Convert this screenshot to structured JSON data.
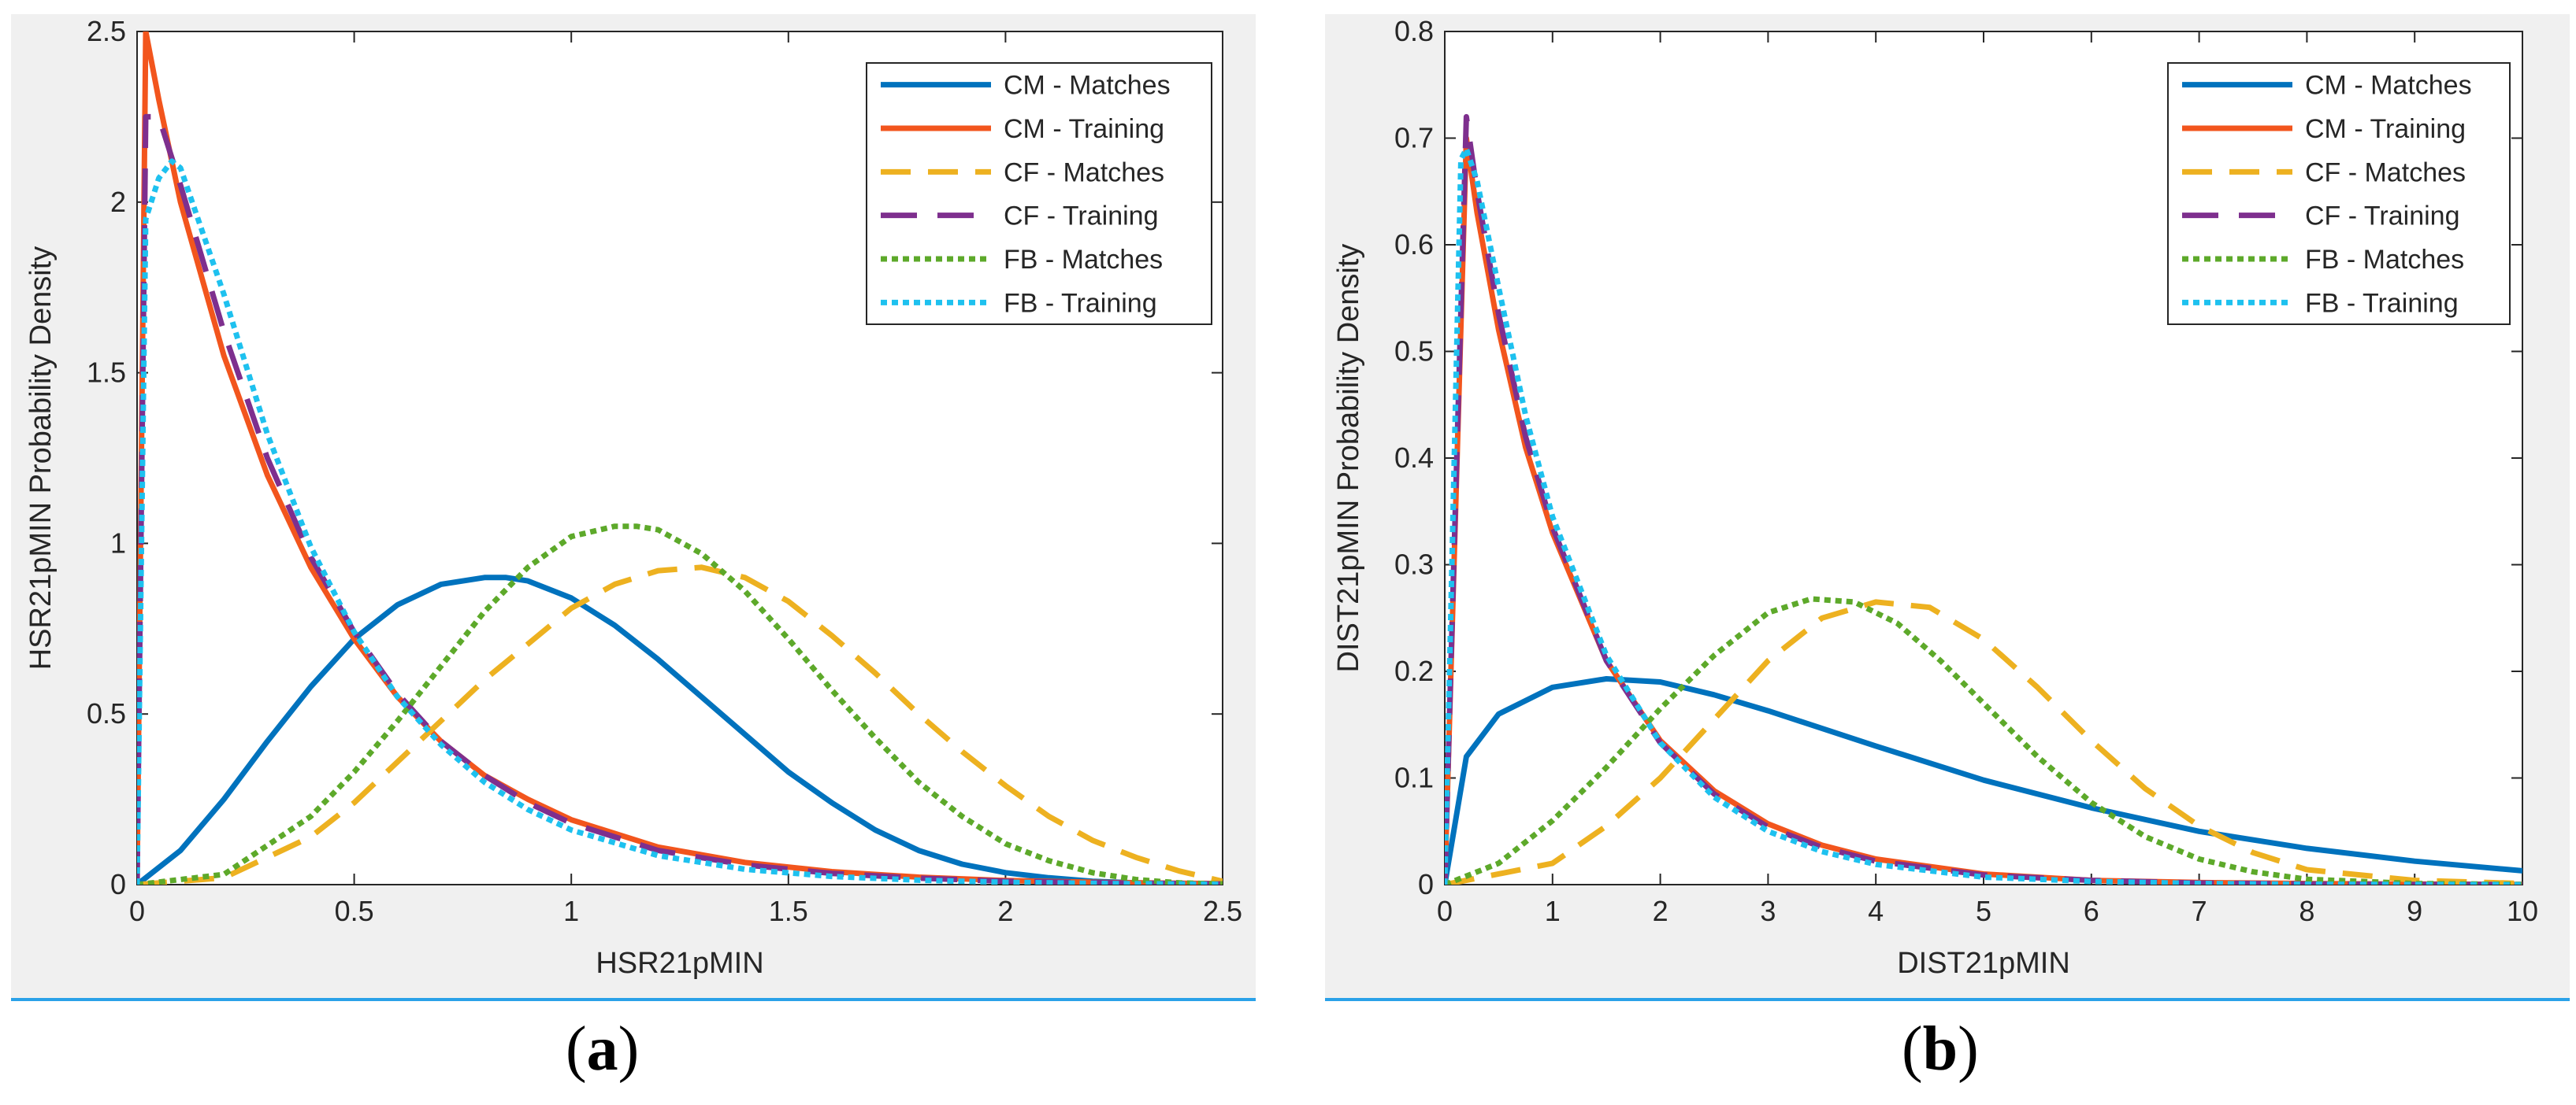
{
  "colors": {
    "panel_bg": "#f0f0f0",
    "rule": "#2aa1e8",
    "cm": "#0072bd",
    "cm_training": "#f2551d",
    "cf": "#edb120",
    "cf_training": "#7e2f8e",
    "fb": "#5da92a",
    "fb_training": "#1ec1ef"
  },
  "captions": {
    "a": {
      "open": "(",
      "letter": "a",
      "close": ")"
    },
    "b": {
      "open": "(",
      "letter": "b",
      "close": ")"
    }
  },
  "chart_data": [
    {
      "type": "line",
      "panel": "a",
      "title": "",
      "xlabel": "HSR21pMIN",
      "ylabel": "HSR21pMIN Probability Density",
      "xlim": [
        0,
        2.5
      ],
      "ylim": [
        0,
        2.5
      ],
      "xticks": [
        0,
        0.5,
        1,
        1.5,
        2,
        2.5
      ],
      "xtick_labels": [
        "0",
        "0.5",
        "1",
        "1.5",
        "2",
        "2.5"
      ],
      "yticks": [
        0,
        0.5,
        1,
        1.5,
        2,
        2.5
      ],
      "ytick_labels": [
        "0",
        "0.5",
        "1",
        "1.5",
        "2",
        "2.5"
      ],
      "grid": false,
      "legend_position": "top-right",
      "series": [
        {
          "name": "CM - Matches",
          "style": "solid",
          "color": "#0072bd",
          "x": [
            0,
            0.1,
            0.2,
            0.3,
            0.4,
            0.5,
            0.6,
            0.7,
            0.8,
            0.85,
            0.9,
            1.0,
            1.1,
            1.2,
            1.3,
            1.4,
            1.5,
            1.6,
            1.7,
            1.8,
            1.9,
            2.0,
            2.1,
            2.2,
            2.3,
            2.4,
            2.5
          ],
          "y": [
            0,
            0.1,
            0.25,
            0.42,
            0.58,
            0.72,
            0.82,
            0.88,
            0.9,
            0.9,
            0.89,
            0.84,
            0.76,
            0.66,
            0.55,
            0.44,
            0.33,
            0.24,
            0.16,
            0.1,
            0.06,
            0.035,
            0.02,
            0.01,
            0.005,
            0.002,
            0.001
          ]
        },
        {
          "name": "CM - Training",
          "style": "solid",
          "color": "#f2551d",
          "x": [
            0,
            0.02,
            0.05,
            0.1,
            0.2,
            0.3,
            0.4,
            0.5,
            0.6,
            0.7,
            0.8,
            0.9,
            1.0,
            1.2,
            1.4,
            1.6,
            1.8,
            2.0,
            2.25,
            2.5
          ],
          "y": [
            0,
            2.5,
            2.3,
            2.0,
            1.55,
            1.2,
            0.93,
            0.72,
            0.55,
            0.42,
            0.32,
            0.25,
            0.19,
            0.11,
            0.065,
            0.038,
            0.022,
            0.012,
            0.006,
            0.003
          ]
        },
        {
          "name": "CF - Matches",
          "style": "dashed",
          "color": "#edb120",
          "x": [
            0,
            0.2,
            0.4,
            0.5,
            0.6,
            0.8,
            1.0,
            1.1,
            1.2,
            1.3,
            1.4,
            1.5,
            1.6,
            1.7,
            1.8,
            1.9,
            2.0,
            2.1,
            2.2,
            2.3,
            2.4,
            2.5
          ],
          "y": [
            0,
            0.02,
            0.14,
            0.24,
            0.36,
            0.6,
            0.81,
            0.88,
            0.92,
            0.93,
            0.9,
            0.83,
            0.73,
            0.62,
            0.5,
            0.39,
            0.29,
            0.2,
            0.13,
            0.08,
            0.04,
            0.01
          ]
        },
        {
          "name": "CF - Training",
          "style": "longdash",
          "color": "#7e2f8e",
          "x": [
            0,
            0.02,
            0.05,
            0.1,
            0.2,
            0.3,
            0.4,
            0.5,
            0.6,
            0.7,
            0.8,
            0.9,
            1.0,
            1.2,
            1.4,
            1.6,
            1.8,
            2.0,
            2.25,
            2.5
          ],
          "y": [
            0,
            2.25,
            2.25,
            2.05,
            1.62,
            1.25,
            0.96,
            0.74,
            0.56,
            0.42,
            0.32,
            0.24,
            0.18,
            0.1,
            0.058,
            0.033,
            0.019,
            0.01,
            0.005,
            0.002
          ]
        },
        {
          "name": "FB - Matches",
          "style": "dotted",
          "color": "#5da92a",
          "x": [
            0,
            0.2,
            0.4,
            0.5,
            0.6,
            0.7,
            0.8,
            0.9,
            1.0,
            1.1,
            1.15,
            1.2,
            1.3,
            1.4,
            1.5,
            1.6,
            1.7,
            1.8,
            1.9,
            2.0,
            2.1,
            2.2,
            2.3,
            2.4,
            2.5
          ],
          "y": [
            0,
            0.03,
            0.2,
            0.33,
            0.48,
            0.64,
            0.8,
            0.93,
            1.02,
            1.05,
            1.05,
            1.04,
            0.97,
            0.86,
            0.72,
            0.57,
            0.43,
            0.3,
            0.2,
            0.12,
            0.07,
            0.035,
            0.015,
            0.005,
            0.002
          ]
        },
        {
          "name": "FB - Training",
          "style": "dotted",
          "color": "#1ec1ef",
          "x": [
            0,
            0.02,
            0.05,
            0.08,
            0.1,
            0.2,
            0.3,
            0.4,
            0.5,
            0.6,
            0.7,
            0.8,
            0.9,
            1.0,
            1.2,
            1.4,
            1.6,
            1.8,
            2.0,
            2.25,
            2.5
          ],
          "y": [
            0,
            1.95,
            2.07,
            2.12,
            2.1,
            1.73,
            1.32,
            0.99,
            0.74,
            0.55,
            0.41,
            0.3,
            0.22,
            0.16,
            0.085,
            0.045,
            0.024,
            0.013,
            0.007,
            0.003,
            0.001
          ]
        }
      ]
    },
    {
      "type": "line",
      "panel": "b",
      "title": "",
      "xlabel": "DIST21pMIN",
      "ylabel": "DIST21pMIN Probability Density",
      "xlim": [
        0,
        10
      ],
      "ylim": [
        0,
        0.8
      ],
      "xticks": [
        0,
        1,
        2,
        3,
        4,
        5,
        6,
        7,
        8,
        9,
        10
      ],
      "xtick_labels": [
        "0",
        "1",
        "2",
        "3",
        "4",
        "5",
        "6",
        "7",
        "8",
        "9",
        "10"
      ],
      "yticks": [
        0,
        0.1,
        0.2,
        0.3,
        0.4,
        0.5,
        0.6,
        0.7,
        0.8
      ],
      "ytick_labels": [
        "0",
        "0.1",
        "0.2",
        "0.3",
        "0.4",
        "0.5",
        "0.6",
        "0.7",
        "0.8"
      ],
      "grid": false,
      "legend_position": "top-right",
      "series": [
        {
          "name": "CM - Matches",
          "style": "solid",
          "color": "#0072bd",
          "x": [
            0,
            0.2,
            0.5,
            1.0,
            1.5,
            2.0,
            2.5,
            3.0,
            4.0,
            5.0,
            6.0,
            7.0,
            8.0,
            9.0,
            10.0
          ],
          "y": [
            0,
            0.12,
            0.16,
            0.185,
            0.193,
            0.19,
            0.178,
            0.163,
            0.13,
            0.098,
            0.072,
            0.05,
            0.034,
            0.022,
            0.013
          ]
        },
        {
          "name": "CM - Training",
          "style": "solid",
          "color": "#f2551d",
          "x": [
            0,
            0.2,
            0.3,
            0.5,
            0.75,
            1.0,
            1.5,
            2.0,
            2.5,
            3.0,
            3.5,
            4.0,
            5.0,
            6.0,
            7.0,
            8.0,
            9.0,
            10.0
          ],
          "y": [
            0,
            0.7,
            0.63,
            0.52,
            0.41,
            0.33,
            0.21,
            0.135,
            0.088,
            0.057,
            0.037,
            0.024,
            0.01,
            0.004,
            0.002,
            0.001,
            0.0005,
            0.0002
          ]
        },
        {
          "name": "CF - Matches",
          "style": "dashed",
          "color": "#edb120",
          "x": [
            0,
            1.0,
            1.5,
            2.0,
            2.5,
            3.0,
            3.5,
            4.0,
            4.5,
            5.0,
            5.5,
            6.0,
            6.5,
            7.0,
            7.5,
            8.0,
            9.0,
            10.0
          ],
          "y": [
            0,
            0.02,
            0.055,
            0.1,
            0.155,
            0.21,
            0.25,
            0.265,
            0.26,
            0.23,
            0.185,
            0.135,
            0.09,
            0.055,
            0.03,
            0.014,
            0.004,
            0.001
          ]
        },
        {
          "name": "CF - Training",
          "style": "longdash",
          "color": "#7e2f8e",
          "x": [
            0,
            0.2,
            0.3,
            0.5,
            0.75,
            1.0,
            1.5,
            2.0,
            2.5,
            3.0,
            3.5,
            4.0,
            5.0,
            6.0,
            7.0,
            8.0,
            9.0,
            10.0
          ],
          "y": [
            0,
            0.72,
            0.65,
            0.535,
            0.42,
            0.335,
            0.21,
            0.133,
            0.085,
            0.054,
            0.035,
            0.022,
            0.009,
            0.004,
            0.0015,
            0.0006,
            0.0002,
            0.0001
          ]
        },
        {
          "name": "FB - Matches",
          "style": "dotted",
          "color": "#5da92a",
          "x": [
            0,
            0.5,
            1.0,
            1.5,
            2.0,
            2.5,
            3.0,
            3.4,
            3.8,
            4.2,
            4.6,
            5.0,
            5.5,
            6.0,
            6.5,
            7.0,
            7.5,
            8.0,
            9.0,
            10.0
          ],
          "y": [
            0,
            0.02,
            0.06,
            0.11,
            0.165,
            0.215,
            0.255,
            0.268,
            0.265,
            0.245,
            0.21,
            0.17,
            0.12,
            0.077,
            0.045,
            0.024,
            0.012,
            0.005,
            0.001,
            0.0002
          ]
        },
        {
          "name": "FB - Training",
          "style": "dotted",
          "color": "#1ec1ef",
          "x": [
            0,
            0.15,
            0.2,
            0.3,
            0.5,
            0.75,
            1.0,
            1.5,
            2.0,
            2.5,
            3.0,
            3.5,
            4.0,
            5.0,
            6.0,
            7.0,
            8.0,
            9.0,
            10.0
          ],
          "y": [
            0,
            0.68,
            0.69,
            0.66,
            0.56,
            0.44,
            0.345,
            0.215,
            0.133,
            0.082,
            0.05,
            0.031,
            0.019,
            0.007,
            0.003,
            0.001,
            0.0004,
            0.0001,
            0.0
          ]
        }
      ]
    }
  ]
}
